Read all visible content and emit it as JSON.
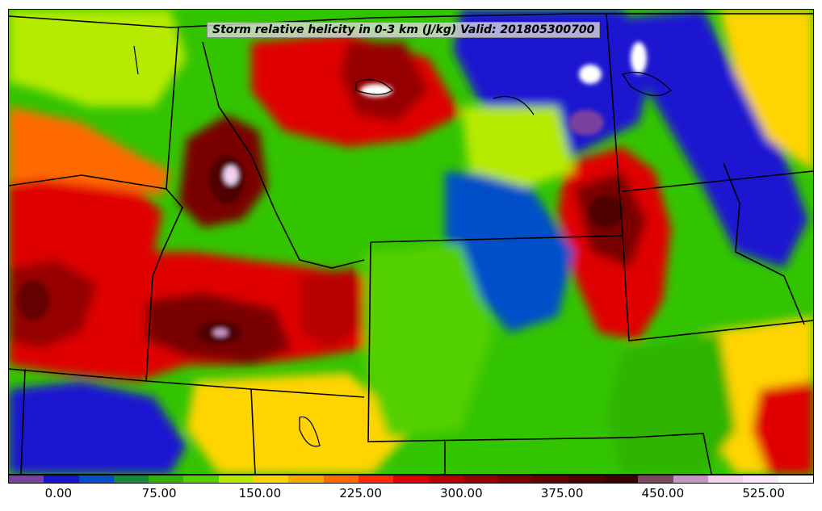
{
  "title": "Storm relative helicity in 0-3 km (J/kg) Valid: 201805300700",
  "colorbar": {
    "colors": [
      "#7b3fa0",
      "#1a14d0",
      "#0050c8",
      "#128a3a",
      "#2fb400",
      "#52d000",
      "#b6ea00",
      "#ffd400",
      "#ffa500",
      "#ff6a00",
      "#ff2a00",
      "#e00000",
      "#b80000",
      "#960000",
      "#7a0000",
      "#640000",
      "#500000",
      "#3c0000",
      "#7a4a5c",
      "#c895c0",
      "#f2d2ee",
      "#fde6fb",
      "#ffffff"
    ],
    "tick_labels": [
      "0.00",
      "75.00",
      "150.00",
      "225.00",
      "300.00",
      "375.00",
      "450.00",
      "525.00"
    ],
    "tick_values": [
      0,
      75,
      150,
      225,
      300,
      375,
      450,
      525
    ],
    "min": -37.5,
    "max": 562.5
  },
  "map": {
    "background_color": "#33c400",
    "border_color": "#000000"
  }
}
